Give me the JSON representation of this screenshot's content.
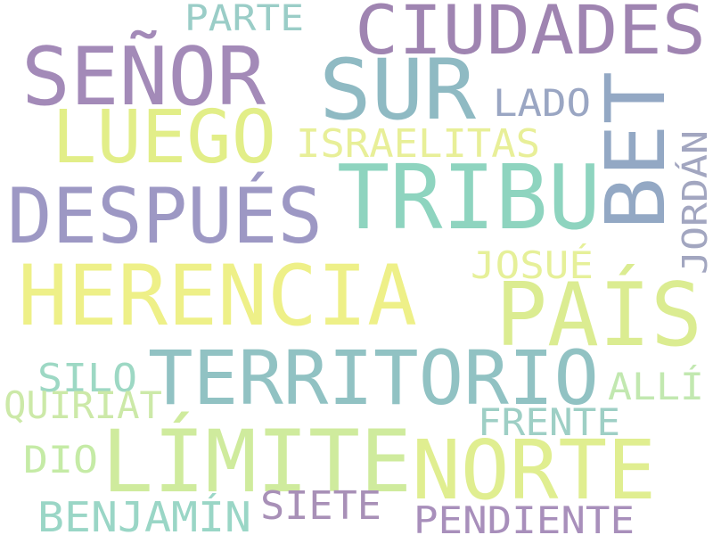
{
  "words": [
    {
      "text": "CIUDADES",
      "color": "#9f84b1"
    },
    {
      "text": "PARTE",
      "color": "#9acdc7"
    },
    {
      "text": "SEÑOR",
      "color": "#a38ab8"
    },
    {
      "text": "SUR",
      "color": "#8fbac3"
    },
    {
      "text": "LADO",
      "color": "#9aa6c3"
    },
    {
      "text": "LUEGO",
      "color": "#e2ee88"
    },
    {
      "text": "ISRAELITAS",
      "color": "#e8ef98"
    },
    {
      "text": "BET",
      "color": "#93a8c4"
    },
    {
      "text": "TRIBU",
      "color": "#8ed4bf"
    },
    {
      "text": "DESPUÉS",
      "color": "#9d98c4"
    },
    {
      "text": "JORDÁN",
      "color": "#a2a6c0"
    },
    {
      "text": "HERENCIA",
      "color": "#eef088"
    },
    {
      "text": "JOSUÉ",
      "color": "#e6f099"
    },
    {
      "text": "PAÍS",
      "color": "#dbec91"
    },
    {
      "text": "TERRITORIO",
      "color": "#91c2c3"
    },
    {
      "text": "SILO",
      "color": "#9dd8c4"
    },
    {
      "text": "ALLÍ",
      "color": "#c2e8b0"
    },
    {
      "text": "QUIRIAT",
      "color": "#cce9a8"
    },
    {
      "text": "FRENTE",
      "color": "#9ecfc5"
    },
    {
      "text": "DIO",
      "color": "#c5eba6"
    },
    {
      "text": "LÍMITE",
      "color": "#cfeb9d"
    },
    {
      "text": "NORTE",
      "color": "#e0ee90"
    },
    {
      "text": "BENJAMÍN",
      "color": "#9ad6c6"
    },
    {
      "text": "SIETE",
      "color": "#a890b7"
    },
    {
      "text": "PENDIENTE",
      "color": "#a88fbb"
    }
  ]
}
